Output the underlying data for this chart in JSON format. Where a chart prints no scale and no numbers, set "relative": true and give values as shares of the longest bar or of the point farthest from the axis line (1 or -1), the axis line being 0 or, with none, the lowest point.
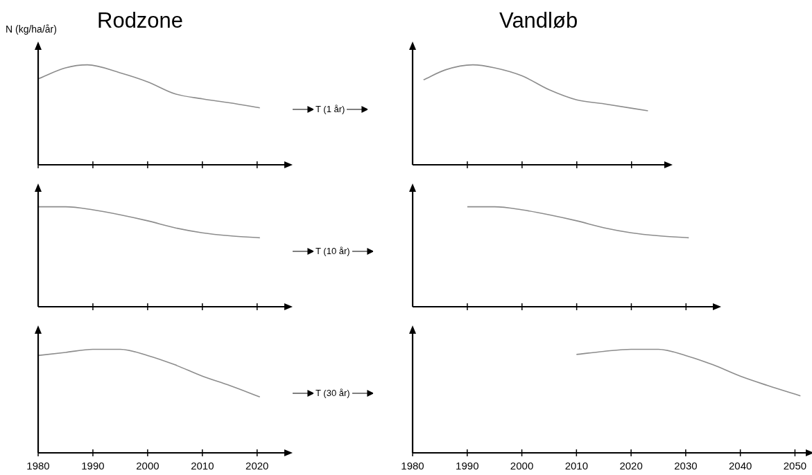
{
  "chart_data": [
    {
      "type": "line",
      "title": "Rodzone",
      "ylabel": "N (kg/ha/år)",
      "relative": true,
      "tick_labels": false,
      "xlim": [
        1980,
        2025
      ],
      "xticks": [
        1980,
        1990,
        2000,
        2010,
        2020
      ],
      "color": "#8c8c8c",
      "x": [
        1980,
        1985,
        1989,
        1995,
        2000,
        2005,
        2010,
        2015,
        2020.5
      ],
      "values": [
        0.86,
        0.97,
        1,
        0.92,
        0.83,
        0.71,
        0.66,
        0.62,
        0.57
      ]
    },
    {
      "type": "line",
      "title": "Vandløb",
      "relative": true,
      "tick_labels": false,
      "xlim": [
        1980,
        2026
      ],
      "xticks": [
        1990,
        2000,
        2010,
        2020
      ],
      "color": "#8c8c8c",
      "annotations": [
        "T (1 år)"
      ],
      "x": [
        1982,
        1986,
        1991,
        1995,
        2000,
        2005,
        2010,
        2015,
        2023
      ],
      "values": [
        0.85,
        0.95,
        1,
        0.97,
        0.89,
        0.75,
        0.65,
        0.61,
        0.54
      ]
    },
    {
      "type": "line",
      "relative": true,
      "tick_labels": false,
      "xlim": [
        1980,
        2025
      ],
      "xticks": [
        1990,
        2000,
        2010,
        2020
      ],
      "color": "#8c8c8c",
      "x": [
        1980,
        1985,
        1990,
        1995,
        2000,
        2005,
        2010,
        2015,
        2020.5
      ],
      "values": [
        1,
        1,
        0.97,
        0.92,
        0.86,
        0.79,
        0.74,
        0.71,
        0.69
      ]
    },
    {
      "type": "line",
      "relative": true,
      "tick_labels": false,
      "xlim": [
        1980,
        2035
      ],
      "xticks": [
        1990,
        2000,
        2010,
        2020,
        2030
      ],
      "color": "#8c8c8c",
      "annotations": [
        "T (10 år)"
      ],
      "x": [
        1990,
        1995,
        2000,
        2005,
        2010,
        2015,
        2020,
        2025,
        2030.5
      ],
      "values": [
        1,
        1,
        0.97,
        0.92,
        0.86,
        0.79,
        0.74,
        0.71,
        0.69
      ]
    },
    {
      "type": "line",
      "relative": true,
      "tick_labels": "x",
      "xlim": [
        1980,
        2025
      ],
      "xticks": [
        1980,
        1990,
        2000,
        2010,
        2020
      ],
      "color": "#8c8c8c",
      "x": [
        1980,
        1985,
        1990,
        1995,
        2000,
        2005,
        2010,
        2015,
        2020.5
      ],
      "values": [
        0.94,
        0.97,
        1,
        1,
        0.94,
        0.85,
        0.74,
        0.65,
        0.54
      ]
    },
    {
      "type": "line",
      "relative": true,
      "tick_labels": "x",
      "xlim": [
        1980,
        2052
      ],
      "xticks": [
        1980,
        1990,
        2000,
        2010,
        2020,
        2030,
        2040,
        2050
      ],
      "color": "#8c8c8c",
      "annotations": [
        "T (30 år)"
      ],
      "x": [
        2010,
        2015,
        2020,
        2025,
        2030,
        2035,
        2040,
        2045,
        2051
      ],
      "values": [
        0.95,
        0.98,
        1,
        1,
        0.94,
        0.85,
        0.74,
        0.65,
        0.55
      ]
    }
  ]
}
